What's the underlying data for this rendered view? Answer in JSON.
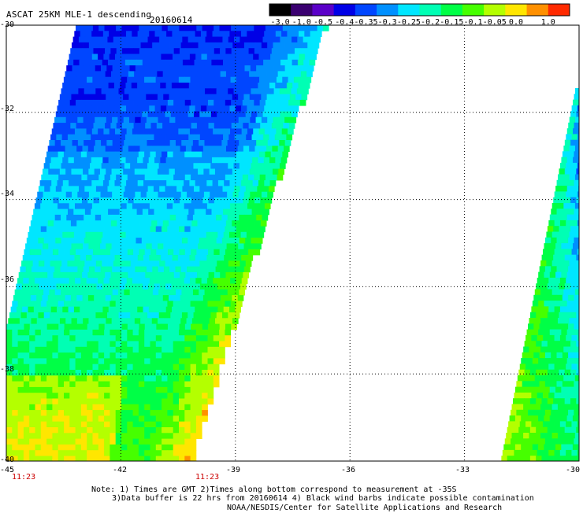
{
  "header": {
    "title": "ASCAT 25KM MLE-1 descending",
    "date": "20160614"
  },
  "colorbar": {
    "labels": [
      "-3.0",
      "-1.0",
      "-0.5",
      "-0.4",
      "-0.35",
      "-0.3",
      "-0.25",
      "-0.2",
      "-0.15",
      "-0.1",
      "-0.05",
      "0.0",
      "1.0"
    ],
    "colors": [
      "#000000",
      "#3a0070",
      "#5a00c8",
      "#0000e6",
      "#0046ff",
      "#0090ff",
      "#00e6ff",
      "#00ffb4",
      "#00ff46",
      "#46ff00",
      "#b4ff00",
      "#ffe600",
      "#ff9000",
      "#ff2a00"
    ]
  },
  "map": {
    "lat_labels": [
      "-30",
      "-32",
      "-34",
      "-36",
      "-38",
      "-40"
    ],
    "lon_labels": [
      "-45",
      "-42",
      "-39",
      "-36",
      "-33",
      "-30"
    ],
    "lat_range": [
      -40,
      -30
    ],
    "lon_range": [
      -45,
      -30
    ],
    "grid": true,
    "times": [
      "11:23",
      "11:23"
    ]
  },
  "notes": {
    "line1": "Note: 1) Times are GMT 2)Times along bottom correspond to measurement at -35S",
    "line2": "3)Data buffer is 22 hrs from 20160614 4) Black wind barbs indicate possible contamination",
    "line3": "NOAA/NESDIS/Center for Satellite Applications and Research"
  }
}
